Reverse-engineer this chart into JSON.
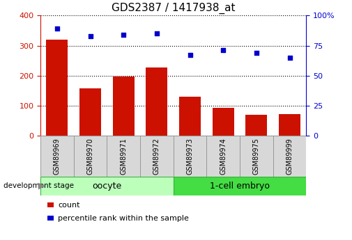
{
  "title": "GDS2387 / 1417938_at",
  "samples": [
    "GSM89969",
    "GSM89970",
    "GSM89971",
    "GSM89972",
    "GSM89973",
    "GSM89974",
    "GSM89975",
    "GSM89999"
  ],
  "counts": [
    320,
    158,
    197,
    228,
    130,
    92,
    70,
    72
  ],
  "percentiles": [
    89,
    83,
    84,
    85,
    67,
    71,
    69,
    65
  ],
  "bar_color": "#cc1100",
  "dot_color": "#0000cc",
  "groups": [
    {
      "label": "oocyte",
      "start": 0,
      "end": 4,
      "color": "#bbffbb"
    },
    {
      "label": "1-cell embryo",
      "start": 4,
      "end": 8,
      "color": "#44dd44"
    }
  ],
  "ylim_left": [
    0,
    400
  ],
  "ylim_right": [
    0,
    100
  ],
  "yticks_left": [
    0,
    100,
    200,
    300,
    400
  ],
  "yticks_right": [
    0,
    25,
    50,
    75,
    100
  ],
  "yticklabels_right": [
    "0",
    "25",
    "50",
    "75",
    "100%"
  ],
  "grid_yticks": [
    100,
    200,
    300
  ],
  "background_color": "#ffffff",
  "title_fontsize": 11,
  "tick_fontsize": 8,
  "label_fontsize": 8,
  "group_label_fontsize": 9,
  "dev_stage_text": "development stage",
  "legend_count_label": "count",
  "legend_percentile_label": "percentile rank within the sample",
  "sample_box_color": "#d8d8d8",
  "sample_box_edge": "#999999",
  "group_edge_color": "#33aa33"
}
